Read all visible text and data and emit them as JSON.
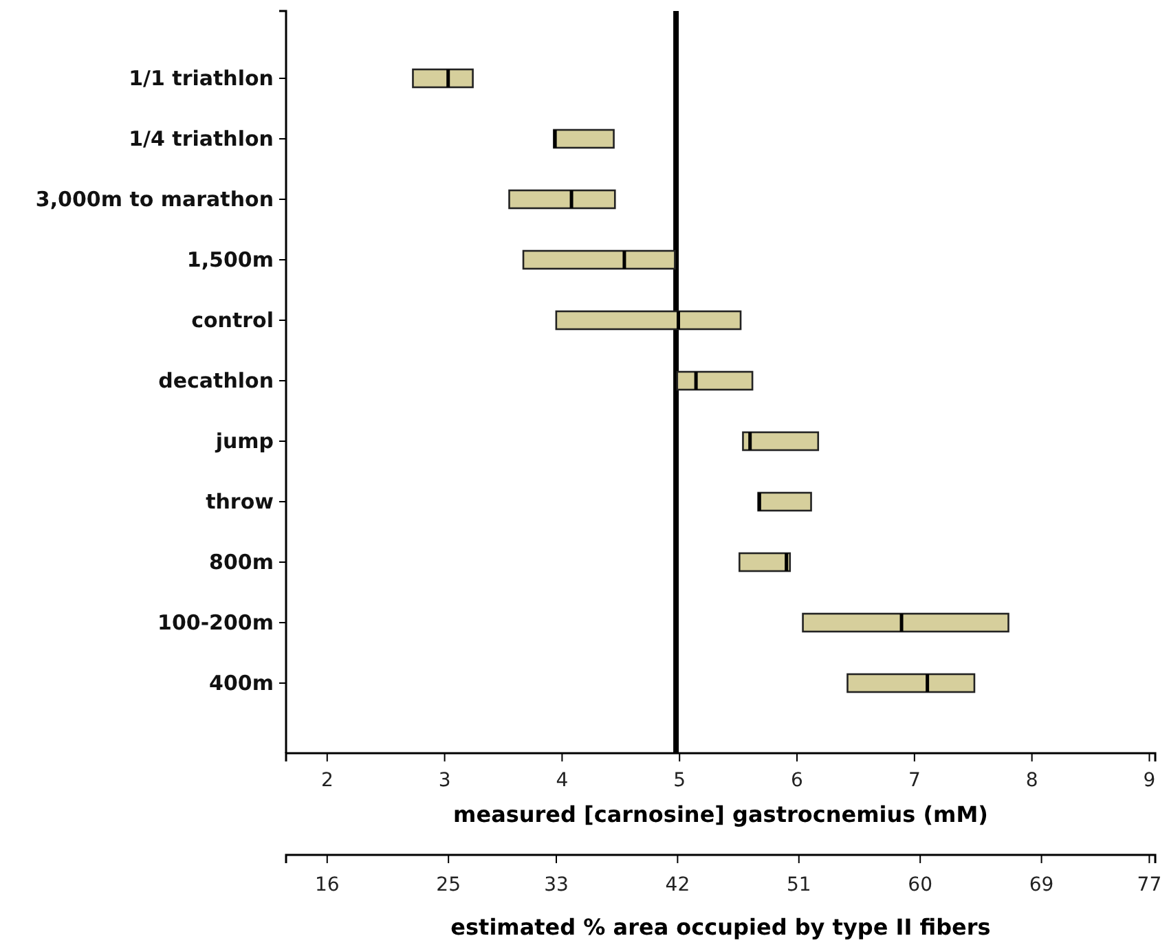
{
  "chart_data": {
    "type": "box",
    "orientation": "horizontal",
    "xlabel": "measured [carnosine] gastrocnemius (mM)",
    "x2label": "estimated % area occupied by type II fibers",
    "categories": [
      "1/1 triathlon",
      "1/4 triathlon",
      "3,000m to marathon",
      "1,500m",
      "control",
      "decathlon",
      "jump",
      "throw",
      "800m",
      "100-200m",
      "400m"
    ],
    "boxes": [
      {
        "low": 2.73,
        "q1": 2.73,
        "median": 3.03,
        "q3": 3.24,
        "high": 3.24
      },
      {
        "low": 3.93,
        "q1": 3.93,
        "median": 3.94,
        "q3": 4.44,
        "high": 4.44
      },
      {
        "low": 3.55,
        "q1": 3.55,
        "median": 4.08,
        "q3": 4.45,
        "high": 4.45
      },
      {
        "low": 3.67,
        "q1": 3.67,
        "median": 4.53,
        "q3": 4.96,
        "high": 4.96
      },
      {
        "low": 3.95,
        "q1": 3.95,
        "median": 4.99,
        "q3": 5.52,
        "high": 5.52
      },
      {
        "low": 4.98,
        "q1": 4.98,
        "median": 5.14,
        "q3": 5.62,
        "high": 5.62
      },
      {
        "low": 5.54,
        "q1": 5.54,
        "median": 5.6,
        "q3": 6.18,
        "high": 6.18
      },
      {
        "low": 5.67,
        "q1": 5.67,
        "median": 5.68,
        "q3": 6.12,
        "high": 6.12
      },
      {
        "low": 5.51,
        "q1": 5.51,
        "median": 5.91,
        "q3": 5.94,
        "high": 5.94
      },
      {
        "low": 6.05,
        "q1": 6.05,
        "median": 6.89,
        "q3": 7.8,
        "high": 7.8
      },
      {
        "low": 6.43,
        "q1": 6.43,
        "median": 7.11,
        "q3": 7.51,
        "high": 7.51
      }
    ],
    "color": "#d6cf9c",
    "xlim": [
      1.65,
      9.05
    ],
    "xticks": [
      2,
      3,
      4,
      5,
      6,
      7,
      8,
      9
    ],
    "x2lim": [
      12.95,
      77.44
    ],
    "x2ticks": [
      16,
      25,
      33,
      42,
      51,
      60,
      69,
      77
    ],
    "ref_lines": [
      {
        "axis": "x",
        "value": 4.97,
        "color": "#000000"
      }
    ],
    "grid": false
  }
}
